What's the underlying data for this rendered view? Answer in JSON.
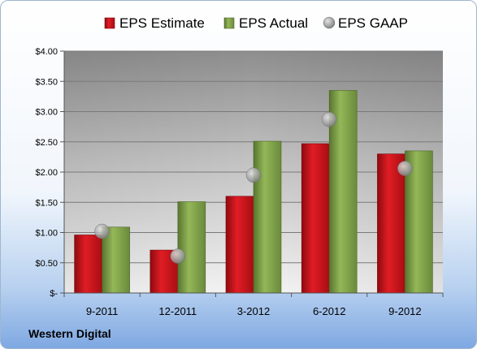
{
  "chart_data": {
    "type": "bar",
    "title": "",
    "xlabel": "",
    "ylabel": "",
    "categories": [
      "9-2011",
      "12-2011",
      "3-2012",
      "6-2012",
      "9-2012"
    ],
    "series": [
      {
        "name": "EPS Estimate",
        "kind": "bar",
        "color": "#c8141c",
        "values": [
          0.96,
          0.71,
          1.6,
          2.47,
          2.3
        ]
      },
      {
        "name": "EPS Actual",
        "kind": "bar",
        "color": "#7fa043",
        "values": [
          1.09,
          1.51,
          2.51,
          3.35,
          2.35
        ]
      },
      {
        "name": "EPS GAAP",
        "kind": "marker",
        "color": "#a6a6a6",
        "values": [
          1.02,
          0.61,
          1.95,
          2.87,
          2.06
        ]
      }
    ],
    "ylim": [
      0,
      4
    ],
    "yticks": [
      0,
      0.5,
      1,
      1.5,
      2,
      2.5,
      3,
      3.5,
      4
    ],
    "ytick_labels": [
      "$-",
      "$0.50",
      "$1.00",
      "$1.50",
      "$2.00",
      "$2.50",
      "$3.00",
      "$3.50",
      "$4.00"
    ],
    "grid": true,
    "legend_position": "top"
  },
  "footer": {
    "company": "Western Digital"
  }
}
